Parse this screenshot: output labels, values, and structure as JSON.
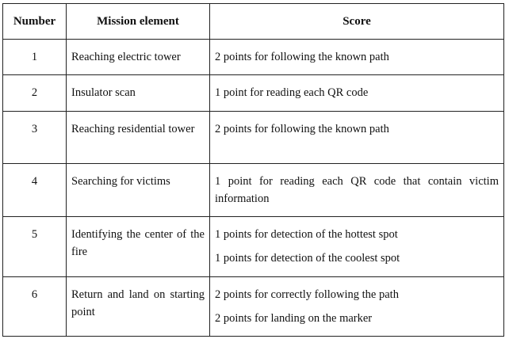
{
  "table": {
    "headers": {
      "number": "Number",
      "element": "Mission element",
      "score": "Score"
    },
    "rows": [
      {
        "number": "1",
        "element": "Reaching electric tower",
        "scores": [
          "2 points for following the known path"
        ]
      },
      {
        "number": "2",
        "element": "Insulator scan",
        "scores": [
          "1 point for reading each QR code"
        ]
      },
      {
        "number": "3",
        "element": "Reaching residential tower",
        "scores": [
          "2 points for following the known path"
        ]
      },
      {
        "number": "4",
        "element": "Searching for victims",
        "scores": [
          "1 point for reading each QR code that contain victim information"
        ]
      },
      {
        "number": "5",
        "element": "Identifying the center of the fire",
        "scores": [
          "1 points for detection of the hottest spot",
          "1 points for detection of the coolest spot"
        ]
      },
      {
        "number": "6",
        "element": "Return and land on starting point",
        "scores": [
          "2 points for correctly following the path",
          "2 points for landing on the marker"
        ]
      }
    ]
  }
}
